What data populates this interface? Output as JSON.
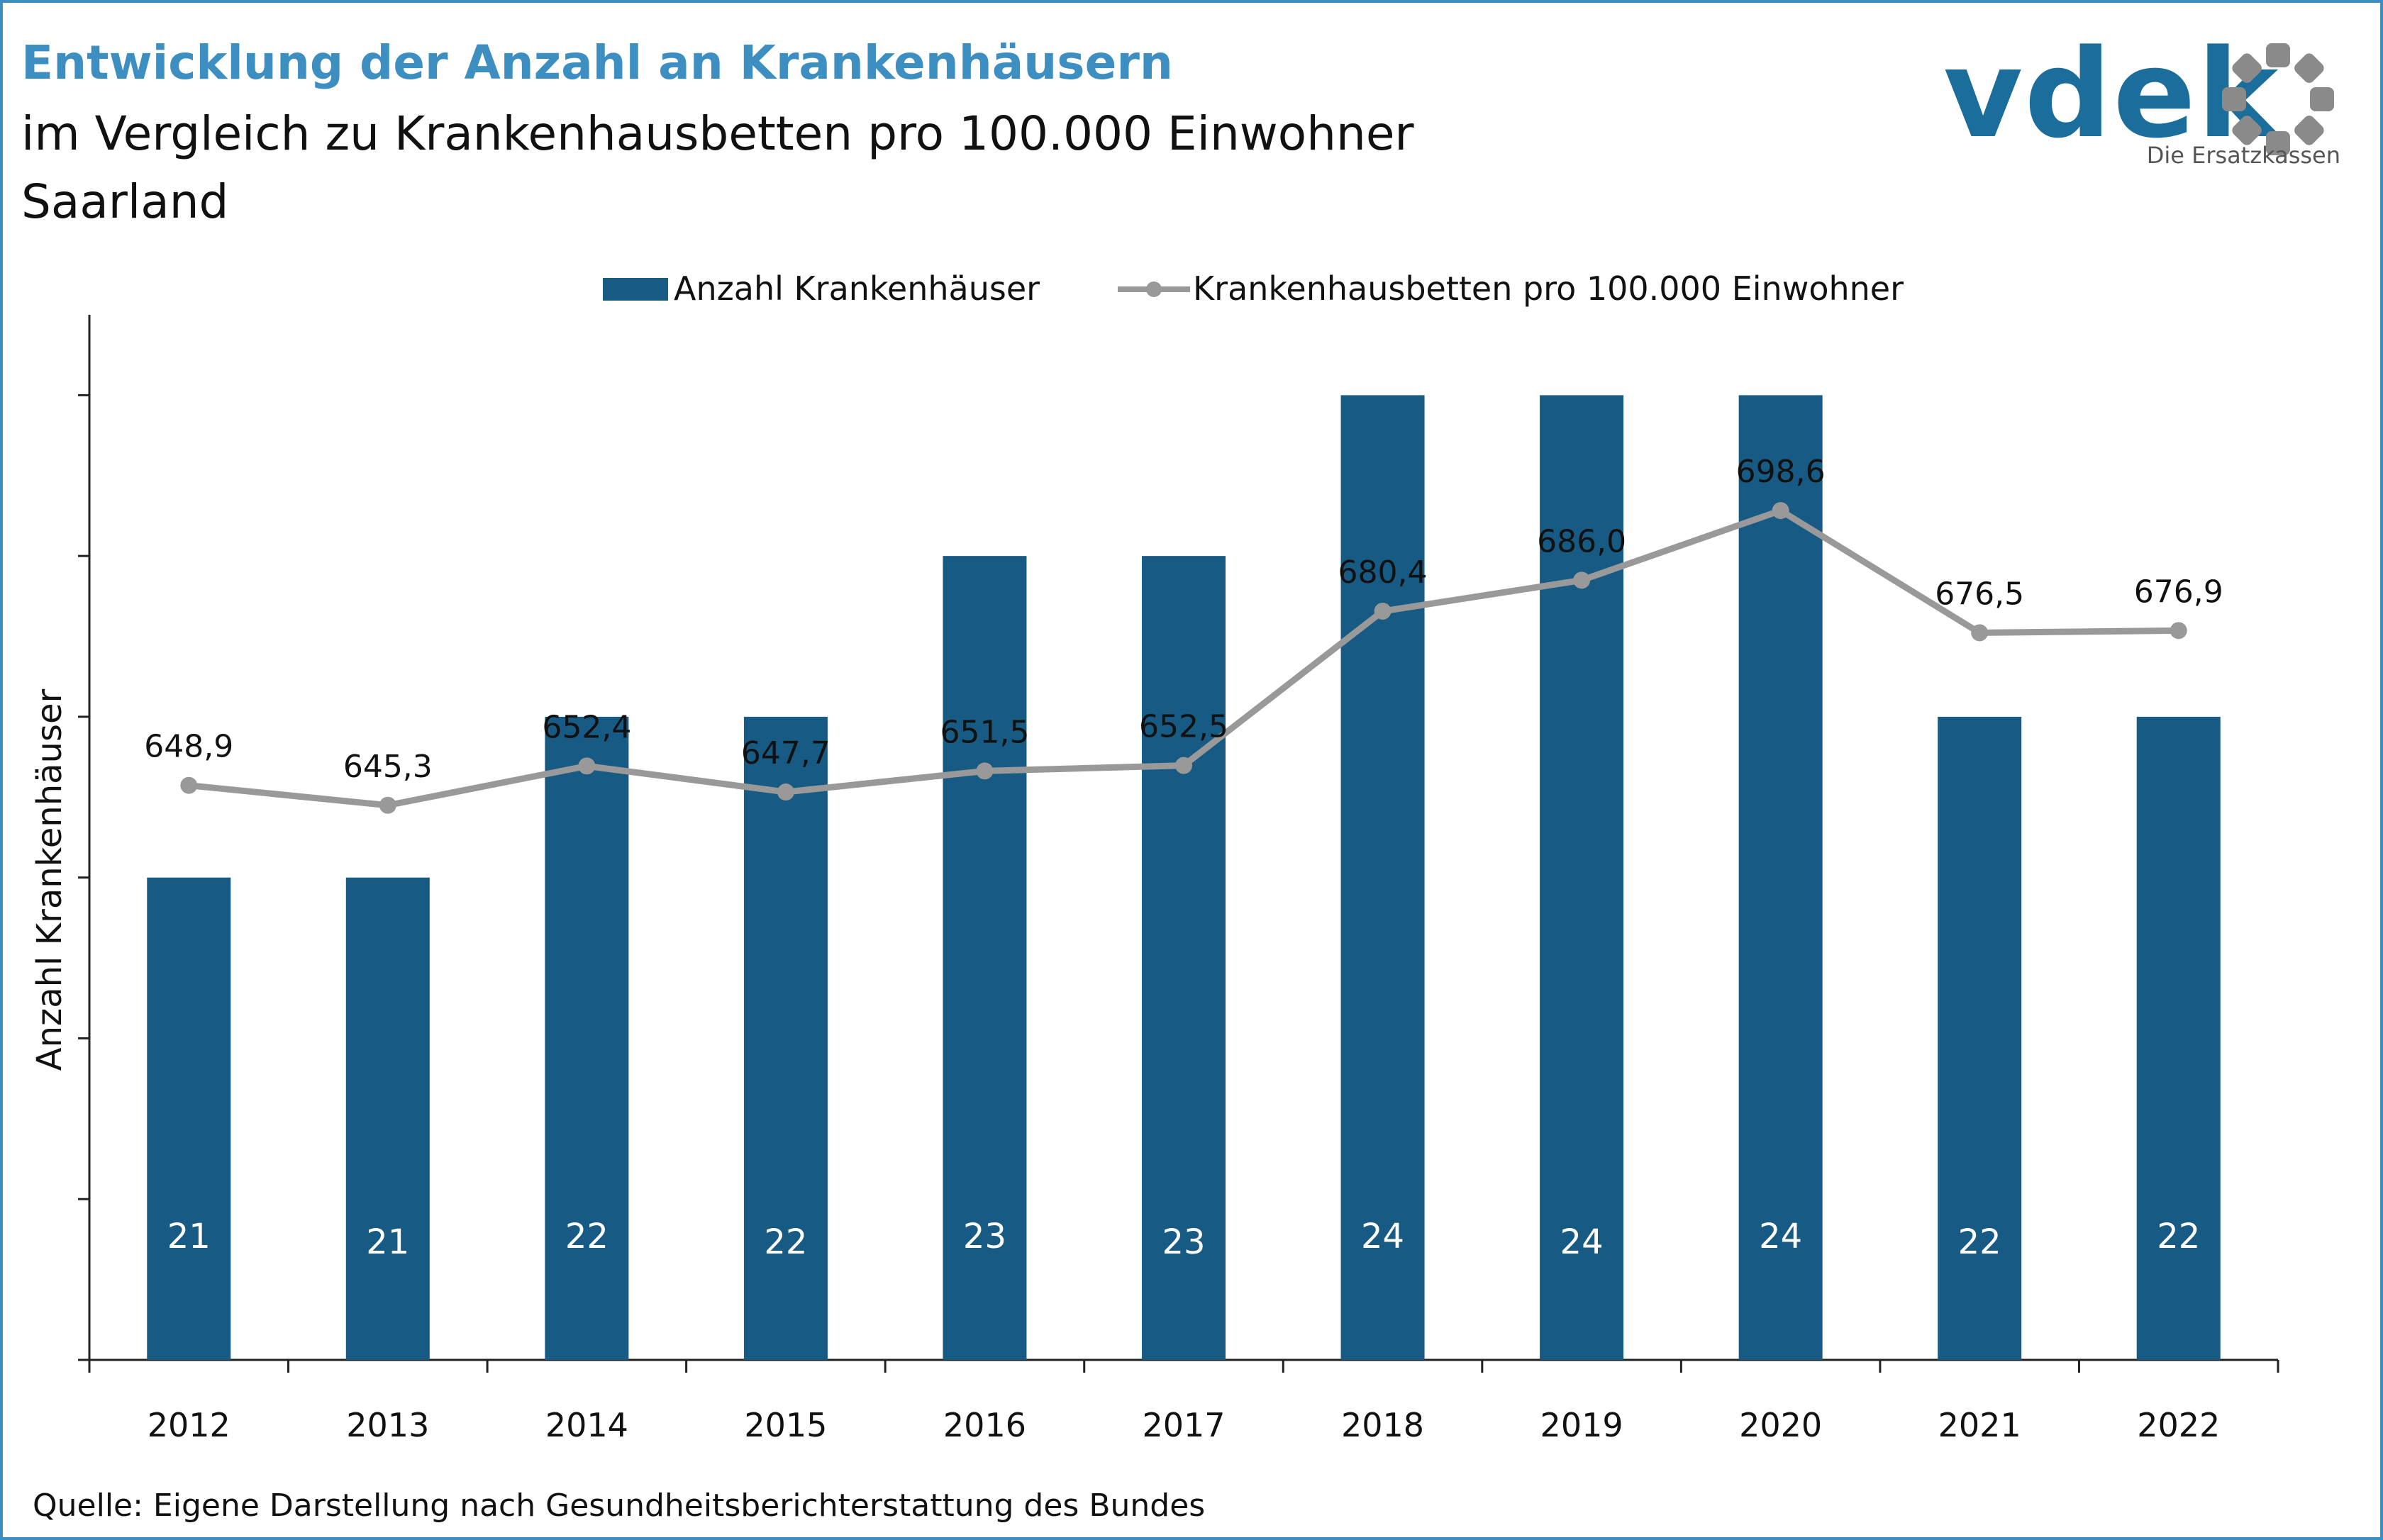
{
  "title": "Entwicklung der Anzahl an Krankenhäusern",
  "subtitle_line1": "im Vergleich zu Krankenhausbetten pro 100.000 Einwohner",
  "subtitle_line2": "Saarland",
  "logo": {
    "text": "vdek",
    "tagline": "Die Ersatzkassen"
  },
  "source": "Quelle: Eigene Darstellung nach Gesundheitsberichterstattung des Bundes",
  "colors": {
    "bar": "#175a83",
    "line": "#999999",
    "title": "#3c8fc0",
    "frame": "#3c8fc0"
  },
  "chart_data": {
    "type": "bar",
    "categories": [
      "2012",
      "2013",
      "2014",
      "2015",
      "2016",
      "2017",
      "2018",
      "2019",
      "2020",
      "2021",
      "2022"
    ],
    "ylabel": "Anzahl Krankenhäuser",
    "xlabel": "",
    "ylim": [
      18,
      24.5
    ],
    "ytick_step": 1,
    "legend_position": "top-center",
    "grid": false,
    "series": [
      {
        "name": "Anzahl Krankenhäuser",
        "type": "bar",
        "values": [
          21,
          21,
          22,
          22,
          23,
          23,
          24,
          24,
          24,
          22,
          22
        ],
        "labels": [
          "21",
          "21",
          "22",
          "22",
          "23",
          "23",
          "24",
          "24",
          "24",
          "22",
          "22"
        ]
      },
      {
        "name": "Krankenhausbetten pro 100.000 Einwohner",
        "type": "line",
        "values": [
          648.9,
          645.3,
          652.4,
          647.7,
          651.5,
          652.5,
          680.4,
          686.0,
          698.6,
          676.5,
          676.9
        ],
        "labels": [
          "648,9",
          "645,3",
          "652,4",
          "647,7",
          "651,5",
          "652,5",
          "680,4",
          "686,0",
          "698,6",
          "676,5",
          "676,9"
        ],
        "ylim": [
          545,
          734
        ]
      }
    ]
  }
}
